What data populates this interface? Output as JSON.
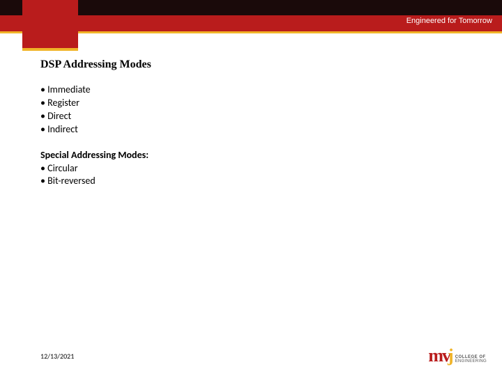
{
  "header": {
    "tagline": "Engineered for Tomorrow",
    "band_color": "#b91c1c",
    "accent_color": "#f0b429",
    "dark_color": "#1a0a0a"
  },
  "slide": {
    "title": "DSP Addressing Modes",
    "bullets_main": [
      " Immediate",
      "Register",
      " Direct",
      "Indirect"
    ],
    "subheading": "Special Addressing Modes:",
    "bullets_special": [
      " Circular",
      "Bit-reversed"
    ]
  },
  "footer": {
    "date": "12/13/2021",
    "logo_m": "m",
    "logo_v": "v",
    "logo_j": "j",
    "logo_line1": "COLLEGE OF",
    "logo_line2": "ENGINEERING"
  }
}
